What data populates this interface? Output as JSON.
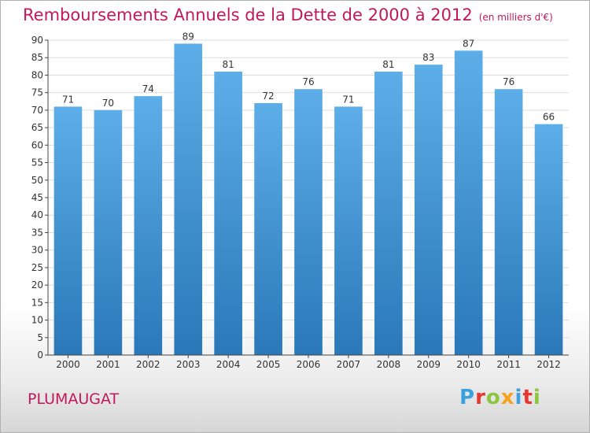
{
  "chart_data": {
    "type": "bar",
    "title": "Remboursements Annuels de la Dette de 2000 à 2012",
    "subtitle": "(en milliers d'€)",
    "categories": [
      "2000",
      "2001",
      "2002",
      "2003",
      "2004",
      "2005",
      "2006",
      "2007",
      "2008",
      "2009",
      "2010",
      "2011",
      "2012"
    ],
    "values": [
      71,
      70,
      74,
      89,
      81,
      72,
      76,
      71,
      81,
      83,
      87,
      76,
      66
    ],
    "ylim": [
      0,
      90
    ],
    "yticks": [
      0,
      5,
      10,
      15,
      20,
      25,
      30,
      35,
      40,
      45,
      50,
      55,
      60,
      65,
      70,
      75,
      80,
      85,
      90
    ],
    "grid": true,
    "bar_color_top": "#5daee8",
    "bar_color_bottom": "#2a78b8",
    "title_color": "#c2185b"
  },
  "commune": "PLUMAUGAT",
  "logo": {
    "text": "Proxiti",
    "letters": [
      {
        "char": "P",
        "color": "#3aa0e0"
      },
      {
        "char": "r",
        "color": "#e8352e"
      },
      {
        "char": "o",
        "color": "#8cc63f"
      },
      {
        "char": "x",
        "color": "#f7a21b"
      },
      {
        "char": "i",
        "color": "#3aa0e0"
      },
      {
        "char": "t",
        "color": "#e8352e"
      },
      {
        "char": "i",
        "color": "#8cc63f"
      }
    ]
  }
}
